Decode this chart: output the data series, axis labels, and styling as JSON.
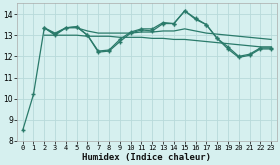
{
  "xlabel": "Humidex (Indice chaleur)",
  "background_color": "#d6f0ef",
  "grid_color": "#b8dada",
  "line_color": "#2a7a6a",
  "xlim": [
    -0.5,
    23.5
  ],
  "ylim": [
    8,
    14.5
  ],
  "yticks": [
    8,
    9,
    10,
    11,
    12,
    13,
    14
  ],
  "xticks": [
    0,
    1,
    2,
    3,
    4,
    5,
    6,
    7,
    8,
    9,
    10,
    11,
    12,
    13,
    14,
    15,
    16,
    17,
    18,
    19,
    20,
    21,
    22,
    23
  ],
  "series": [
    {
      "x": [
        0,
        1,
        2,
        3,
        4,
        5,
        6,
        7,
        8,
        9,
        10,
        11,
        12,
        13,
        14,
        15,
        16,
        17,
        18,
        19,
        20,
        21,
        22,
        23
      ],
      "y": [
        8.5,
        10.2,
        13.35,
        13.05,
        13.35,
        13.4,
        13.0,
        12.25,
        12.3,
        12.8,
        13.15,
        13.3,
        13.3,
        13.6,
        13.55,
        14.15,
        13.8,
        13.5,
        12.85,
        12.45,
        12.0,
        12.1,
        12.4,
        12.4
      ],
      "marker": true
    },
    {
      "x": [
        2,
        3,
        4,
        5,
        6,
        7,
        8,
        9,
        10,
        11,
        12,
        13,
        14,
        15,
        16,
        17,
        18,
        19,
        20,
        21,
        22,
        23
      ],
      "y": [
        13.35,
        13.1,
        13.35,
        13.35,
        13.2,
        13.1,
        13.1,
        13.1,
        13.1,
        13.15,
        13.15,
        13.2,
        13.2,
        13.3,
        13.2,
        13.1,
        13.05,
        13.0,
        12.95,
        12.9,
        12.85,
        12.8
      ],
      "marker": false
    },
    {
      "x": [
        2,
        3,
        4,
        5,
        6,
        7,
        8,
        9,
        10,
        11,
        12,
        13,
        14,
        15,
        16,
        17,
        18,
        19,
        20,
        21,
        22,
        23
      ],
      "y": [
        13.0,
        13.0,
        13.0,
        13.0,
        12.95,
        12.95,
        12.95,
        12.9,
        12.9,
        12.9,
        12.85,
        12.85,
        12.8,
        12.8,
        12.75,
        12.7,
        12.65,
        12.6,
        12.55,
        12.5,
        12.45,
        12.45
      ],
      "marker": false
    },
    {
      "x": [
        2,
        3,
        4,
        5,
        6,
        7,
        8,
        9,
        10,
        11,
        12,
        13,
        14,
        15,
        16,
        17,
        18,
        19,
        20,
        21,
        22,
        23
      ],
      "y": [
        13.35,
        13.0,
        13.35,
        13.4,
        13.0,
        12.2,
        12.25,
        12.7,
        13.1,
        13.25,
        13.2,
        13.55,
        13.55,
        14.15,
        13.75,
        13.5,
        12.85,
        12.35,
        11.95,
        12.05,
        12.35,
        12.35
      ],
      "marker": true
    }
  ]
}
